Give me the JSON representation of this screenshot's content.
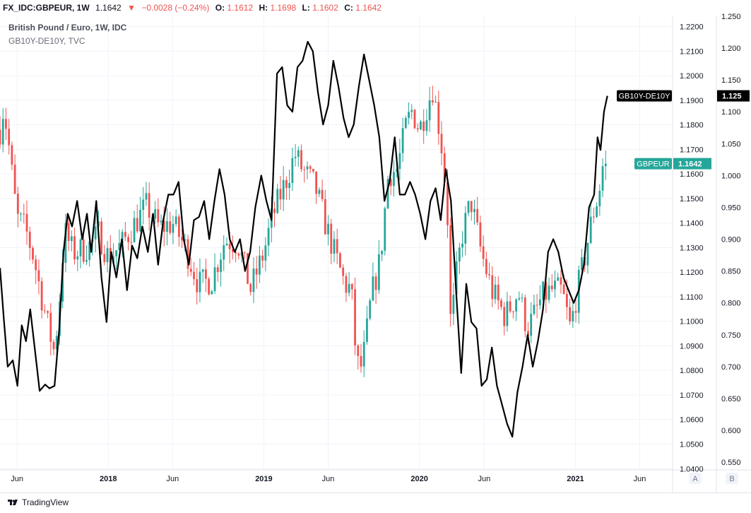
{
  "header": {
    "symbol": "FX_IDC:GBPEUR, 1W",
    "last": "1.1642",
    "change": "−0.0028 (−0.24%)",
    "open_label": "O:",
    "open": "1.1612",
    "high_label": "H:",
    "high": "1.1698",
    "low_label": "L:",
    "low": "1.1602",
    "close_label": "C:",
    "close": "1.1642"
  },
  "legend": {
    "main": "British Pound / Euro, 1W, IDC",
    "overlay": "GB10Y-DE10Y, TVC"
  },
  "footer": {
    "brand": "TradingView"
  },
  "scale_buttons": [
    "A",
    "B"
  ],
  "colors": {
    "up": "#26a69a",
    "down": "#ef5350",
    "overlay_line": "#000000",
    "gbpeur_tag": "#26a69a",
    "spread_tag": "#000000",
    "grid": "#f0f3fa",
    "axis_text": "#131722"
  },
  "chart_data": {
    "type": "line",
    "title": "British Pound / Euro, 1W, IDC",
    "x_tick_labels": [
      "Jun",
      "2018",
      "Jun",
      "2019",
      "Jun",
      "2020",
      "Jun",
      "2021",
      "Jun"
    ],
    "x_tick_dates": [
      "2017-06-01",
      "2018-01-01",
      "2018-06-01",
      "2019-01-01",
      "2019-06-01",
      "2020-01-01",
      "2020-06-01",
      "2021-01-01",
      "2021-06-01"
    ],
    "x_range": [
      "2017-04-22",
      "2021-08-17"
    ],
    "y_axis_a": {
      "name": "GBPEUR",
      "ticks": [
        "1.2200",
        "1.2100",
        "1.2000",
        "1.1900",
        "1.1800",
        "1.1700",
        "1.1600",
        "1.1500",
        "1.1400",
        "1.1300",
        "1.1200",
        "1.1100",
        "1.1000",
        "1.0900",
        "1.0800",
        "1.0700",
        "1.0600",
        "1.0500",
        "1.0400"
      ],
      "ylim": [
        1.0395,
        1.2245
      ]
    },
    "y_axis_b": {
      "name": "GB10Y-DE10Y",
      "ticks": [
        "1.250",
        "1.200",
        "1.150",
        "1.100",
        "1.050",
        "1.000",
        "0.950",
        "0.900",
        "0.850",
        "0.800",
        "0.750",
        "0.700",
        "0.650",
        "0.600",
        "0.550"
      ],
      "ylim": [
        0.538,
        1.251
      ]
    },
    "series": [
      {
        "name": "GBPEUR",
        "axis": "a",
        "last_label": "GBPEUR",
        "last_value": "1.1642",
        "anchors": [
          {
            "x": "2017-04-22",
            "y": 1.178
          },
          {
            "x": "2017-04-30",
            "y": 1.187
          },
          {
            "x": "2017-05-10",
            "y": 1.176
          },
          {
            "x": "2017-05-20",
            "y": 1.16
          },
          {
            "x": "2017-06-01",
            "y": 1.142
          },
          {
            "x": "2017-06-20",
            "y": 1.138
          },
          {
            "x": "2017-07-10",
            "y": 1.126
          },
          {
            "x": "2017-07-25",
            "y": 1.113
          },
          {
            "x": "2017-08-10",
            "y": 1.1
          },
          {
            "x": "2017-08-28",
            "y": 1.087
          },
          {
            "x": "2017-09-10",
            "y": 1.112
          },
          {
            "x": "2017-09-20",
            "y": 1.137
          },
          {
            "x": "2017-10-10",
            "y": 1.128
          },
          {
            "x": "2017-11-01",
            "y": 1.129
          },
          {
            "x": "2017-11-20",
            "y": 1.131
          },
          {
            "x": "2017-12-10",
            "y": 1.136
          },
          {
            "x": "2018-01-01",
            "y": 1.126
          },
          {
            "x": "2018-02-01",
            "y": 1.131
          },
          {
            "x": "2018-03-01",
            "y": 1.139
          },
          {
            "x": "2018-04-01",
            "y": 1.147
          },
          {
            "x": "2018-05-01",
            "y": 1.138
          },
          {
            "x": "2018-06-01",
            "y": 1.14
          },
          {
            "x": "2018-07-01",
            "y": 1.13
          },
          {
            "x": "2018-08-01",
            "y": 1.115
          },
          {
            "x": "2018-09-01",
            "y": 1.117
          },
          {
            "x": "2018-10-01",
            "y": 1.133
          },
          {
            "x": "2018-11-01",
            "y": 1.132
          },
          {
            "x": "2018-12-01",
            "y": 1.113
          },
          {
            "x": "2019-01-01",
            "y": 1.128
          },
          {
            "x": "2019-01-20",
            "y": 1.142
          },
          {
            "x": "2019-02-10",
            "y": 1.152
          },
          {
            "x": "2019-02-28",
            "y": 1.16
          },
          {
            "x": "2019-03-15",
            "y": 1.168
          },
          {
            "x": "2019-04-01",
            "y": 1.162
          },
          {
            "x": "2019-05-01",
            "y": 1.155
          },
          {
            "x": "2019-05-25",
            "y": 1.14
          },
          {
            "x": "2019-06-15",
            "y": 1.128
          },
          {
            "x": "2019-07-10",
            "y": 1.115
          },
          {
            "x": "2019-07-25",
            "y": 1.113
          },
          {
            "x": "2019-08-06",
            "y": 1.084
          },
          {
            "x": "2019-08-15",
            "y": 1.08
          },
          {
            "x": "2019-08-25",
            "y": 1.088
          },
          {
            "x": "2019-09-10",
            "y": 1.11
          },
          {
            "x": "2019-10-01",
            "y": 1.125
          },
          {
            "x": "2019-10-20",
            "y": 1.16
          },
          {
            "x": "2019-11-10",
            "y": 1.162
          },
          {
            "x": "2019-12-01",
            "y": 1.18
          },
          {
            "x": "2019-12-15",
            "y": 1.186
          },
          {
            "x": "2020-01-01",
            "y": 1.178
          },
          {
            "x": "2020-02-01",
            "y": 1.195
          },
          {
            "x": "2020-02-20",
            "y": 1.175
          },
          {
            "x": "2020-03-06",
            "y": 1.148
          },
          {
            "x": "2020-03-15",
            "y": 1.095
          },
          {
            "x": "2020-03-25",
            "y": 1.115
          },
          {
            "x": "2020-04-10",
            "y": 1.135
          },
          {
            "x": "2020-05-01",
            "y": 1.149
          },
          {
            "x": "2020-05-25",
            "y": 1.128
          },
          {
            "x": "2020-06-20",
            "y": 1.112
          },
          {
            "x": "2020-07-20",
            "y": 1.102
          },
          {
            "x": "2020-08-20",
            "y": 1.112
          },
          {
            "x": "2020-09-10",
            "y": 1.097
          },
          {
            "x": "2020-09-28",
            "y": 1.103
          },
          {
            "x": "2020-10-15",
            "y": 1.11
          },
          {
            "x": "2020-11-10",
            "y": 1.113
          },
          {
            "x": "2020-12-01",
            "y": 1.112
          },
          {
            "x": "2020-12-20",
            "y": 1.097
          },
          {
            "x": "2021-01-05",
            "y": 1.112
          },
          {
            "x": "2021-01-25",
            "y": 1.128
          },
          {
            "x": "2021-02-10",
            "y": 1.143
          },
          {
            "x": "2021-02-25",
            "y": 1.152
          },
          {
            "x": "2021-03-05",
            "y": 1.163
          },
          {
            "x": "2021-03-17",
            "y": 1.1642
          }
        ]
      },
      {
        "name": "GB10Y-DE10Y",
        "axis": "b",
        "last_label": "GB10Y-DE10Y",
        "last_value": "1.125",
        "points": [
          {
            "x": "2017-04-22",
            "y": 0.855
          },
          {
            "x": "2017-05-01",
            "y": 0.775
          },
          {
            "x": "2017-05-10",
            "y": 0.7
          },
          {
            "x": "2017-05-22",
            "y": 0.71
          },
          {
            "x": "2017-06-02",
            "y": 0.67
          },
          {
            "x": "2017-06-12",
            "y": 0.765
          },
          {
            "x": "2017-06-22",
            "y": 0.74
          },
          {
            "x": "2017-07-02",
            "y": 0.79
          },
          {
            "x": "2017-07-14",
            "y": 0.72
          },
          {
            "x": "2017-07-24",
            "y": 0.662
          },
          {
            "x": "2017-08-06",
            "y": 0.672
          },
          {
            "x": "2017-08-16",
            "y": 0.666
          },
          {
            "x": "2017-08-28",
            "y": 0.67
          },
          {
            "x": "2017-09-08",
            "y": 0.76
          },
          {
            "x": "2017-09-18",
            "y": 0.88
          },
          {
            "x": "2017-09-28",
            "y": 0.94
          },
          {
            "x": "2017-10-08",
            "y": 0.92
          },
          {
            "x": "2017-10-20",
            "y": 0.96
          },
          {
            "x": "2017-11-01",
            "y": 0.9
          },
          {
            "x": "2017-11-12",
            "y": 0.94
          },
          {
            "x": "2017-11-22",
            "y": 0.88
          },
          {
            "x": "2017-12-04",
            "y": 0.96
          },
          {
            "x": "2017-12-16",
            "y": 0.84
          },
          {
            "x": "2017-12-28",
            "y": 0.77
          },
          {
            "x": "2018-01-08",
            "y": 0.88
          },
          {
            "x": "2018-01-20",
            "y": 0.84
          },
          {
            "x": "2018-02-02",
            "y": 0.9
          },
          {
            "x": "2018-02-14",
            "y": 0.82
          },
          {
            "x": "2018-02-26",
            "y": 0.89
          },
          {
            "x": "2018-03-10",
            "y": 0.87
          },
          {
            "x": "2018-03-22",
            "y": 0.92
          },
          {
            "x": "2018-04-04",
            "y": 0.88
          },
          {
            "x": "2018-04-16",
            "y": 0.94
          },
          {
            "x": "2018-04-28",
            "y": 0.86
          },
          {
            "x": "2018-05-10",
            "y": 0.93
          },
          {
            "x": "2018-05-22",
            "y": 0.97
          },
          {
            "x": "2018-06-03",
            "y": 0.97
          },
          {
            "x": "2018-06-15",
            "y": 0.99
          },
          {
            "x": "2018-06-27",
            "y": 0.9
          },
          {
            "x": "2018-07-09",
            "y": 0.86
          },
          {
            "x": "2018-07-21",
            "y": 0.93
          },
          {
            "x": "2018-08-02",
            "y": 0.935
          },
          {
            "x": "2018-08-14",
            "y": 0.96
          },
          {
            "x": "2018-08-26",
            "y": 0.9
          },
          {
            "x": "2018-09-07",
            "y": 0.96
          },
          {
            "x": "2018-09-19",
            "y": 1.01
          },
          {
            "x": "2018-10-01",
            "y": 0.97
          },
          {
            "x": "2018-10-13",
            "y": 0.9
          },
          {
            "x": "2018-10-25",
            "y": 0.88
          },
          {
            "x": "2018-11-06",
            "y": 0.9
          },
          {
            "x": "2018-11-18",
            "y": 0.85
          },
          {
            "x": "2018-11-30",
            "y": 0.88
          },
          {
            "x": "2018-12-12",
            "y": 0.95
          },
          {
            "x": "2018-12-26",
            "y": 1.0
          },
          {
            "x": "2019-01-07",
            "y": 0.96
          },
          {
            "x": "2019-01-19",
            "y": 0.93
          },
          {
            "x": "2019-02-01",
            "y": 1.16
          },
          {
            "x": "2019-02-13",
            "y": 1.17
          },
          {
            "x": "2019-02-25",
            "y": 1.11
          },
          {
            "x": "2019-03-09",
            "y": 1.1
          },
          {
            "x": "2019-03-21",
            "y": 1.17
          },
          {
            "x": "2019-04-02",
            "y": 1.18
          },
          {
            "x": "2019-04-14",
            "y": 1.21
          },
          {
            "x": "2019-04-26",
            "y": 1.195
          },
          {
            "x": "2019-05-08",
            "y": 1.13
          },
          {
            "x": "2019-05-20",
            "y": 1.08
          },
          {
            "x": "2019-06-01",
            "y": 1.11
          },
          {
            "x": "2019-06-13",
            "y": 1.18
          },
          {
            "x": "2019-06-25",
            "y": 1.14
          },
          {
            "x": "2019-07-07",
            "y": 1.09
          },
          {
            "x": "2019-07-19",
            "y": 1.06
          },
          {
            "x": "2019-07-31",
            "y": 1.08
          },
          {
            "x": "2019-08-12",
            "y": 1.14
          },
          {
            "x": "2019-08-24",
            "y": 1.19
          },
          {
            "x": "2019-09-05",
            "y": 1.15
          },
          {
            "x": "2019-09-17",
            "y": 1.11
          },
          {
            "x": "2019-09-29",
            "y": 1.06
          },
          {
            "x": "2019-10-11",
            "y": 0.96
          },
          {
            "x": "2019-10-23",
            "y": 0.99
          },
          {
            "x": "2019-11-04",
            "y": 1.06
          },
          {
            "x": "2019-11-16",
            "y": 0.97
          },
          {
            "x": "2019-11-28",
            "y": 0.97
          },
          {
            "x": "2019-12-10",
            "y": 0.99
          },
          {
            "x": "2019-12-22",
            "y": 0.97
          },
          {
            "x": "2020-01-03",
            "y": 0.94
          },
          {
            "x": "2020-01-15",
            "y": 0.9
          },
          {
            "x": "2020-01-27",
            "y": 0.96
          },
          {
            "x": "2020-02-08",
            "y": 0.98
          },
          {
            "x": "2020-02-20",
            "y": 0.93
          },
          {
            "x": "2020-03-03",
            "y": 1.01
          },
          {
            "x": "2020-03-15",
            "y": 0.96
          },
          {
            "x": "2020-03-27",
            "y": 0.82
          },
          {
            "x": "2020-04-08",
            "y": 0.69
          },
          {
            "x": "2020-04-20",
            "y": 0.83
          },
          {
            "x": "2020-05-02",
            "y": 0.77
          },
          {
            "x": "2020-05-14",
            "y": 0.76
          },
          {
            "x": "2020-05-26",
            "y": 0.67
          },
          {
            "x": "2020-06-07",
            "y": 0.68
          },
          {
            "x": "2020-06-19",
            "y": 0.73
          },
          {
            "x": "2020-07-01",
            "y": 0.67
          },
          {
            "x": "2020-07-13",
            "y": 0.64
          },
          {
            "x": "2020-07-25",
            "y": 0.61
          },
          {
            "x": "2020-08-06",
            "y": 0.59
          },
          {
            "x": "2020-08-18",
            "y": 0.66
          },
          {
            "x": "2020-08-30",
            "y": 0.7
          },
          {
            "x": "2020-09-11",
            "y": 0.75
          },
          {
            "x": "2020-09-23",
            "y": 0.7
          },
          {
            "x": "2020-10-05",
            "y": 0.74
          },
          {
            "x": "2020-10-17",
            "y": 0.79
          },
          {
            "x": "2020-10-29",
            "y": 0.88
          },
          {
            "x": "2020-11-10",
            "y": 0.9
          },
          {
            "x": "2020-11-22",
            "y": 0.88
          },
          {
            "x": "2020-12-04",
            "y": 0.84
          },
          {
            "x": "2020-12-16",
            "y": 0.82
          },
          {
            "x": "2020-12-28",
            "y": 0.8
          },
          {
            "x": "2021-01-09",
            "y": 0.82
          },
          {
            "x": "2021-01-21",
            "y": 0.86
          },
          {
            "x": "2021-02-02",
            "y": 0.95
          },
          {
            "x": "2021-02-14",
            "y": 0.97
          },
          {
            "x": "2021-02-22",
            "y": 1.06
          },
          {
            "x": "2021-03-01",
            "y": 1.04
          },
          {
            "x": "2021-03-09",
            "y": 1.1
          },
          {
            "x": "2021-03-17",
            "y": 1.125
          }
        ]
      }
    ],
    "grid": true,
    "legend_position": "top-left"
  }
}
